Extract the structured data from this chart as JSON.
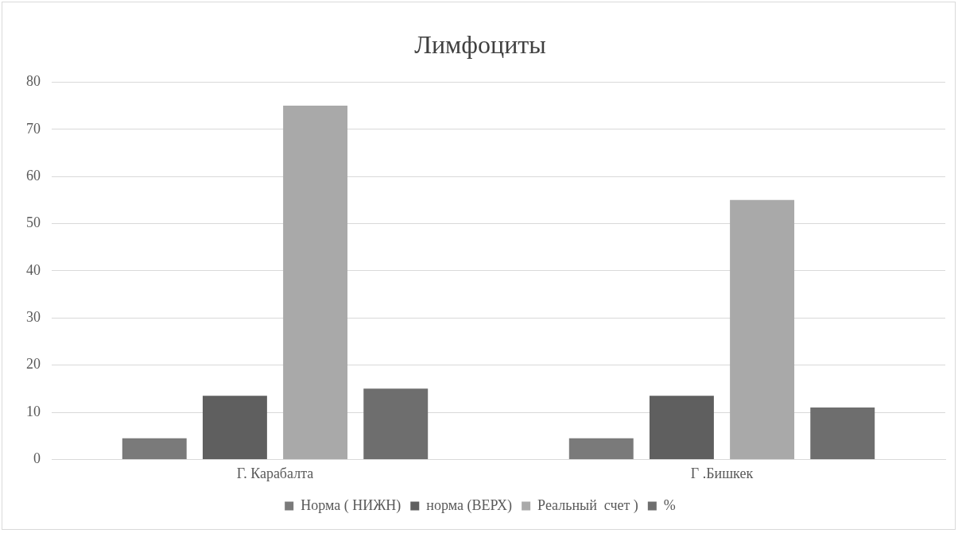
{
  "chart_data": {
    "type": "bar",
    "title": "Лимфоциты",
    "categories": [
      "Г. Карабалта",
      "Г .Бишкек"
    ],
    "series": [
      {
        "name": "Норма ( НИЖН)",
        "color": "#7a7a7a",
        "values": [
          4.5,
          4.5
        ]
      },
      {
        "name": "норма (ВЕРХ)",
        "color": "#5f5f5f",
        "values": [
          13.5,
          13.5
        ]
      },
      {
        "name": "Реальный  счет )",
        "color": "#a9a9a9",
        "values": [
          75,
          55
        ]
      },
      {
        "name": "%",
        "color": "#6e6e6e",
        "values": [
          15,
          11
        ]
      }
    ],
    "ylim": [
      0,
      80
    ],
    "yticks": [
      0,
      10,
      20,
      30,
      40,
      50,
      60,
      70,
      80
    ],
    "grid": "y",
    "legend": "bottom"
  }
}
